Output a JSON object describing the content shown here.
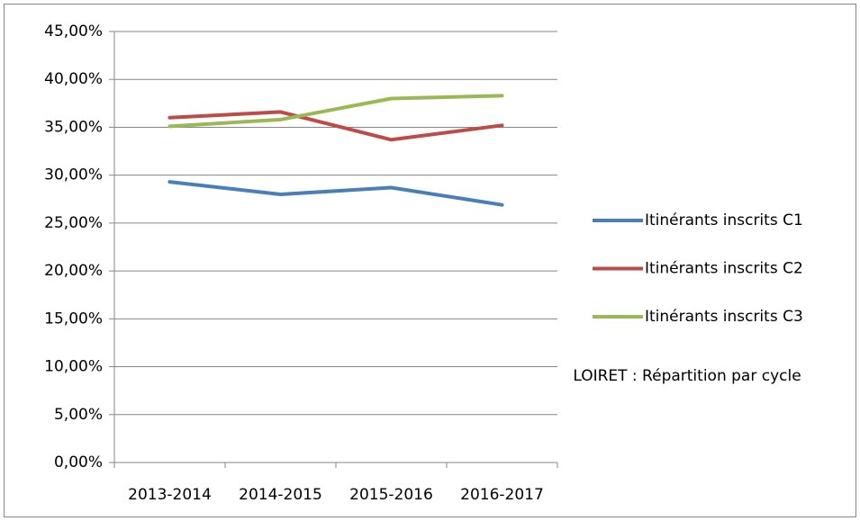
{
  "chart_data": {
    "type": "line",
    "title": "LOIRET : Répartition par cycle",
    "categories": [
      "2013-2014",
      "2014-2015",
      "2015-2016",
      "2016-2017"
    ],
    "series": [
      {
        "name": "Itinérants inscrits C1",
        "color": "#4a7ebb",
        "values": [
          29.3,
          28.0,
          28.7,
          26.9
        ]
      },
      {
        "name": "Itinérants inscrits C2",
        "color": "#be4b48",
        "values": [
          36.0,
          36.6,
          33.7,
          35.2
        ]
      },
      {
        "name": "Itinérants inscrits C3",
        "color": "#98b954",
        "values": [
          35.1,
          35.8,
          38.0,
          38.3
        ]
      }
    ],
    "ylim": [
      0,
      45
    ],
    "yticks": [
      {
        "value": 0,
        "label": "0,00%"
      },
      {
        "value": 5,
        "label": "5,00%"
      },
      {
        "value": 10,
        "label": "10,00%"
      },
      {
        "value": 15,
        "label": "15,00%"
      },
      {
        "value": 20,
        "label": "20,00%"
      },
      {
        "value": 25,
        "label": "25,00%"
      },
      {
        "value": 30,
        "label": "30,00%"
      },
      {
        "value": 35,
        "label": "35,00%"
      },
      {
        "value": 40,
        "label": "40,00%"
      },
      {
        "value": 45,
        "label": "45,00%"
      }
    ],
    "grid": true,
    "legend": "right"
  }
}
